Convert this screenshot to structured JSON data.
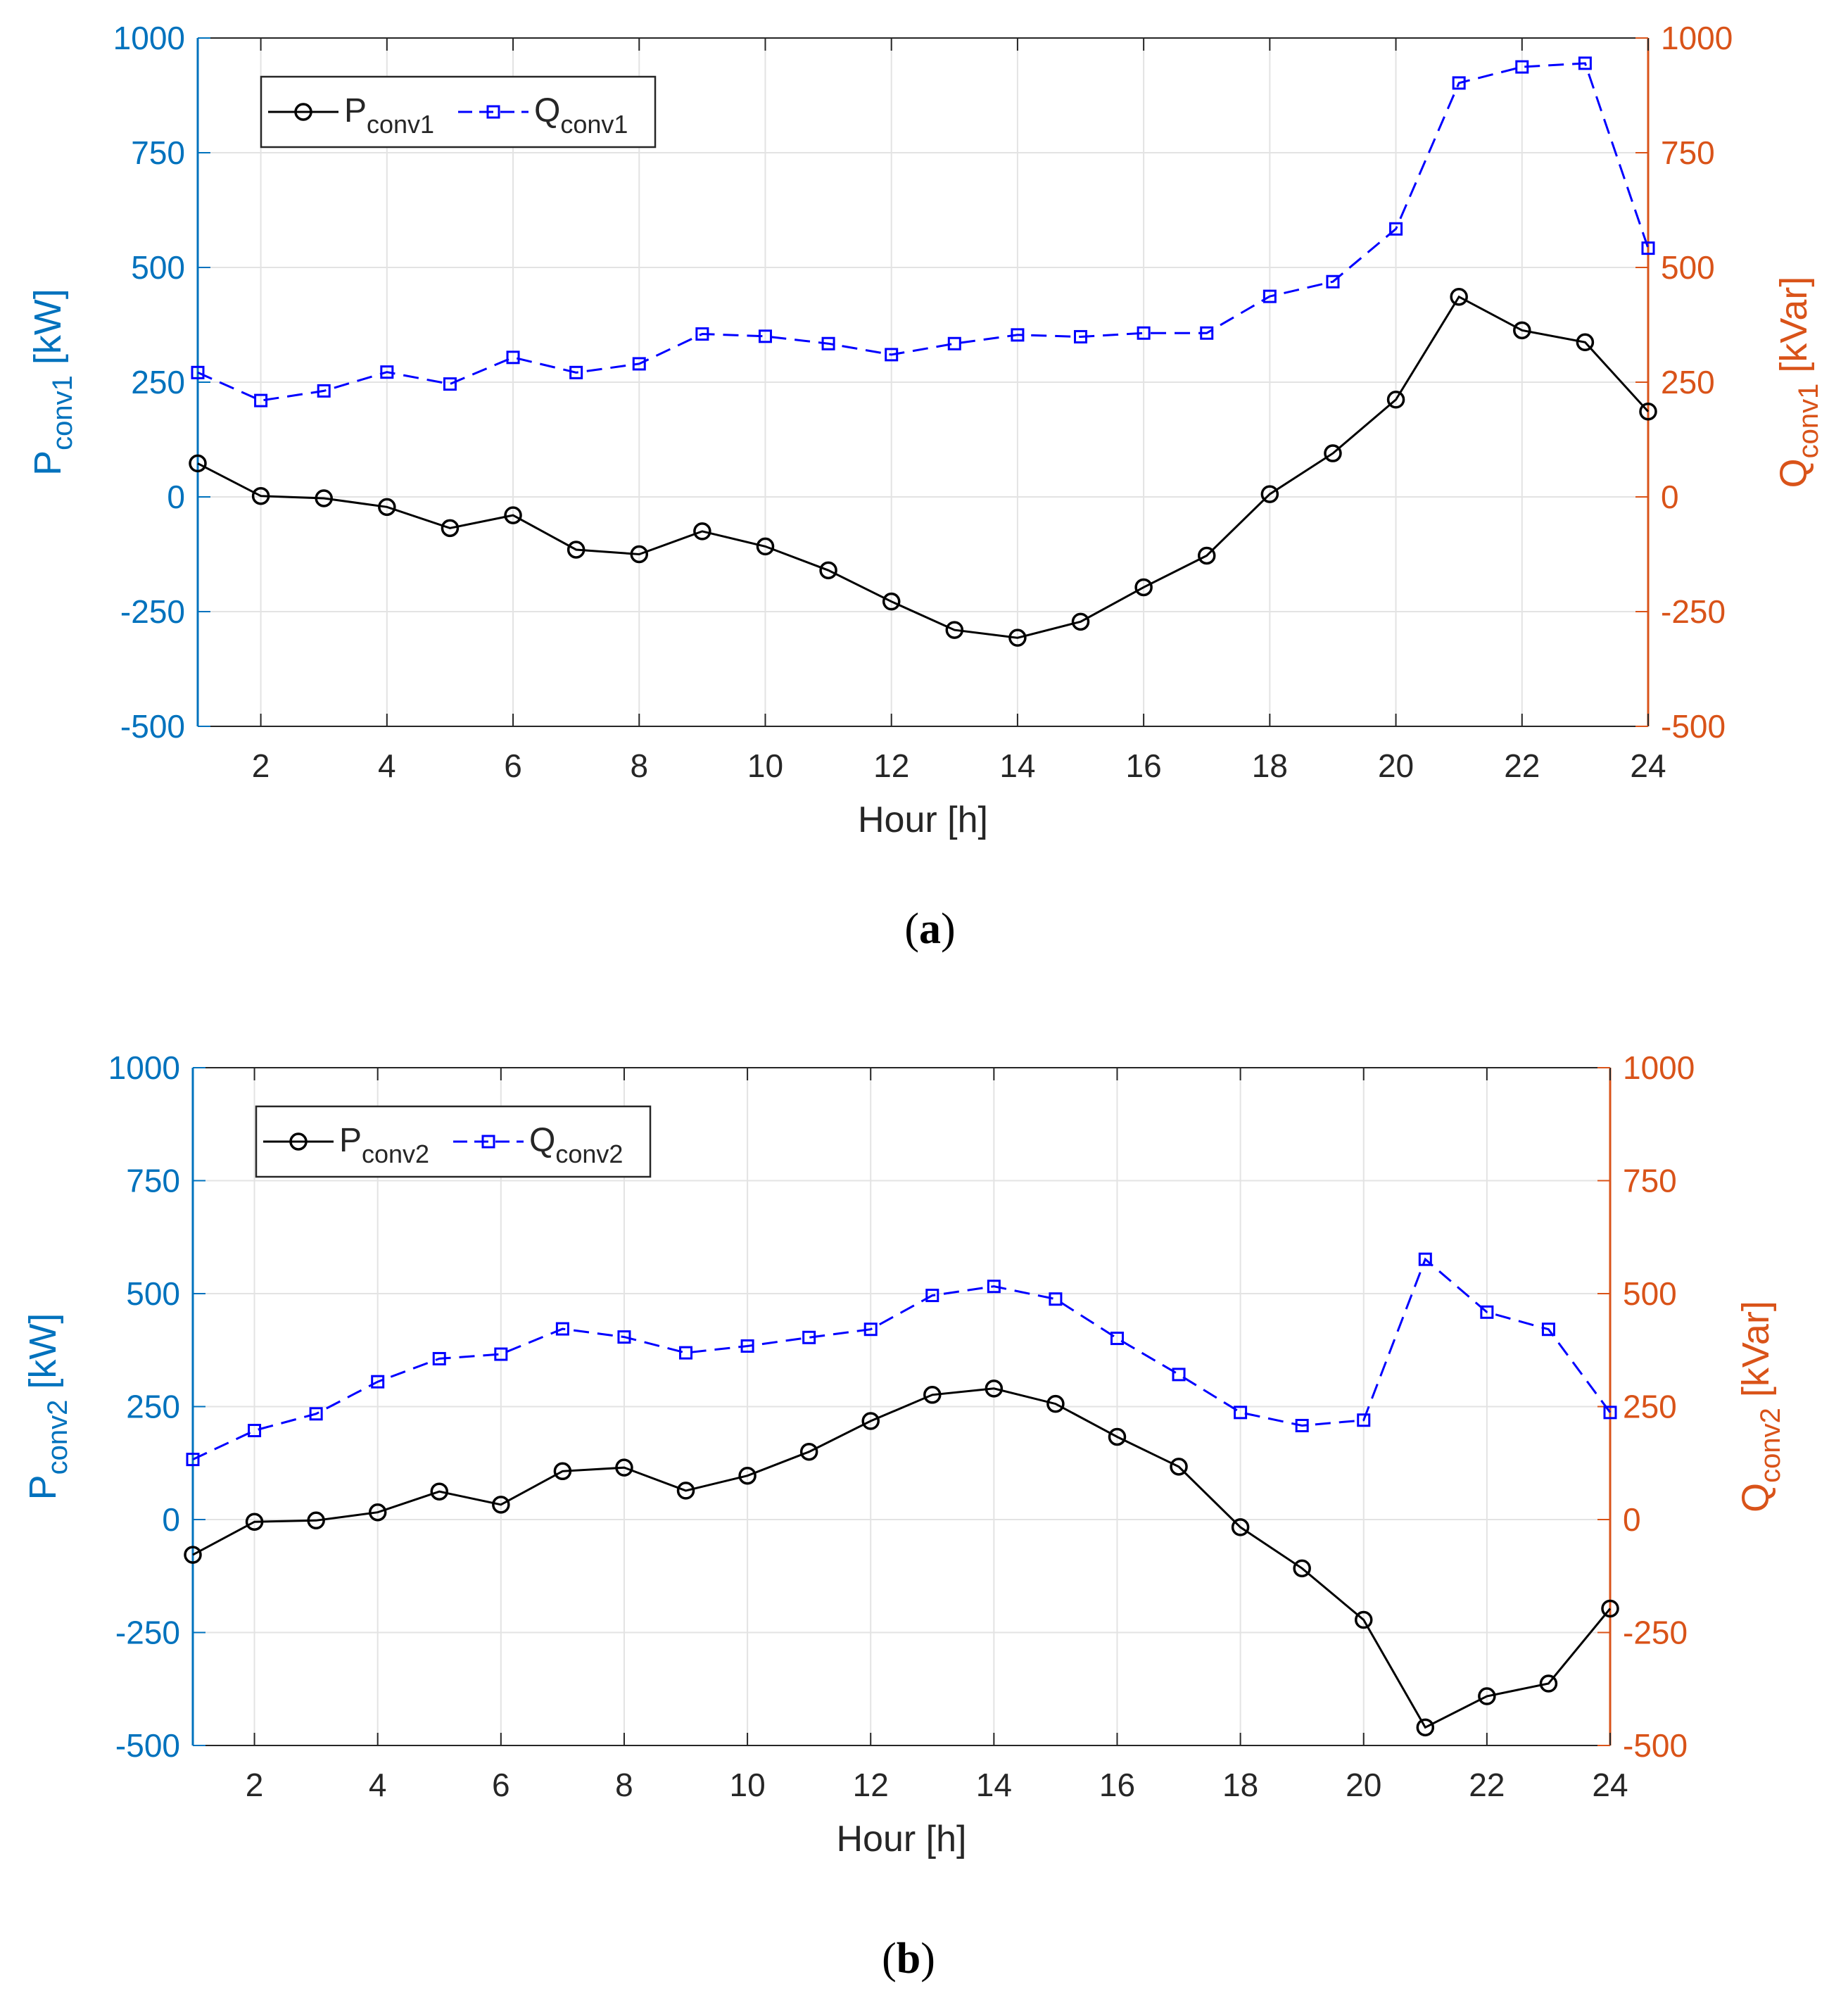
{
  "chart_data": [
    {
      "type": "line",
      "panel_caption": "a",
      "xlabel": "Hour [h]",
      "ylabel_left": {
        "main": "P",
        "sub": "conv1",
        "unit": " [kW]"
      },
      "ylabel_right": {
        "main": "Q",
        "sub": "conv1",
        "unit": " [kVar]"
      },
      "xlim": [
        1,
        24
      ],
      "ylim": [
        -500,
        1000
      ],
      "y2lim": [
        -500,
        1000
      ],
      "xticks": [
        2,
        4,
        6,
        8,
        10,
        12,
        14,
        16,
        18,
        20,
        22,
        24
      ],
      "yticks": [
        -500,
        -250,
        0,
        250,
        500,
        750,
        1000
      ],
      "grid": true,
      "legend_position": "top-left",
      "x": [
        1,
        2,
        3,
        4,
        5,
        6,
        7,
        8,
        9,
        10,
        11,
        12,
        13,
        14,
        15,
        16,
        17,
        18,
        19,
        20,
        21,
        22,
        23,
        24
      ],
      "series": [
        {
          "name_main": "P",
          "name_sub": "conv1",
          "axis": "left",
          "color": "#000000",
          "line_style": "solid",
          "marker": "circle",
          "values": [
            73,
            2,
            -3,
            -22,
            -68,
            -40,
            -115,
            -125,
            -75,
            -108,
            -160,
            -228,
            -290,
            -307,
            -272,
            -197,
            -128,
            6,
            95,
            212,
            436,
            363,
            337,
            186
          ]
        },
        {
          "name_main": "Q",
          "name_sub": "conv1",
          "axis": "right",
          "color": "#0000ff",
          "line_style": "dashed",
          "marker": "square",
          "values": [
            271,
            210,
            231,
            272,
            246,
            304,
            271,
            290,
            355,
            350,
            334,
            310,
            334,
            353,
            349,
            357,
            357,
            437,
            469,
            584,
            902,
            937,
            945,
            542
          ]
        }
      ]
    },
    {
      "type": "line",
      "panel_caption": "b",
      "xlabel": "Hour [h]",
      "ylabel_left": {
        "main": "P",
        "sub": "conv2",
        "unit": " [kW]"
      },
      "ylabel_right": {
        "main": "Q",
        "sub": "conv2",
        "unit": " [kVar]"
      },
      "xlim": [
        1,
        24
      ],
      "ylim": [
        -500,
        1000
      ],
      "y2lim": [
        -500,
        1000
      ],
      "xticks": [
        2,
        4,
        6,
        8,
        10,
        12,
        14,
        16,
        18,
        20,
        22,
        24
      ],
      "yticks": [
        -500,
        -250,
        0,
        250,
        500,
        750,
        1000
      ],
      "grid": true,
      "legend_position": "top-left",
      "x": [
        1,
        2,
        3,
        4,
        5,
        6,
        7,
        8,
        9,
        10,
        11,
        12,
        13,
        14,
        15,
        16,
        17,
        18,
        19,
        20,
        21,
        22,
        23,
        24
      ],
      "series": [
        {
          "name_main": "P",
          "name_sub": "conv2",
          "axis": "left",
          "color": "#000000",
          "line_style": "solid",
          "marker": "circle",
          "values": [
            -78,
            -5,
            -2,
            16,
            62,
            33,
            107,
            115,
            64,
            97,
            150,
            218,
            276,
            290,
            256,
            183,
            117,
            -17,
            -108,
            -222,
            -460,
            -391,
            -363,
            -197
          ]
        },
        {
          "name_main": "Q",
          "name_sub": "conv2",
          "axis": "right",
          "color": "#0000ff",
          "line_style": "dashed",
          "marker": "square",
          "values": [
            133,
            197,
            234,
            305,
            356,
            366,
            422,
            404,
            369,
            384,
            403,
            421,
            496,
            516,
            488,
            401,
            321,
            237,
            208,
            220,
            576,
            459,
            421,
            237
          ]
        }
      ]
    }
  ],
  "style": {
    "left_axis_color": "#0072bd",
    "right_axis_color": "#d95319",
    "grid_color": "#e3e3e3",
    "text_color": "#262626",
    "legend_border": "#262626"
  }
}
